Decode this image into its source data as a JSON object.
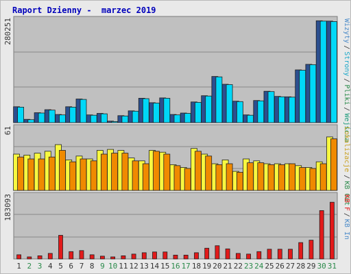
{
  "page": {
    "title": "Raport Dzienny -  marzec 2019"
  },
  "colors": {
    "panel_bg": "#c0c0c0",
    "grid": "#888888",
    "visits": "#2b4f8f",
    "pages": "#00d8f8",
    "hits": "#f8f840",
    "files": "#f08a00",
    "kb_f": "#e21a1a",
    "weekday": "#333333",
    "weekend": "#2a8a4a",
    "leg_pages": "#1aa7c8",
    "leg_visits": "#4a8ac8",
    "leg_hits": "#c8a020",
    "leg_files": "#2a8a4a",
    "leg_entries": "#1a9a7a",
    "leg_kb_f": "#e21a1a",
    "leg_kb_in": "#4a8ac8",
    "leg_kb_out": "#2a8a4a"
  },
  "chart_data": {
    "type": "bar",
    "title": "Raport Dzienny -  marzec 2019",
    "categories": [
      "1",
      "2",
      "3",
      "4",
      "5",
      "6",
      "7",
      "8",
      "9",
      "10",
      "11",
      "12",
      "13",
      "14",
      "15",
      "16",
      "17",
      "18",
      "19",
      "20",
      "21",
      "22",
      "23",
      "24",
      "25",
      "26",
      "27",
      "28",
      "29",
      "30",
      "31"
    ],
    "weekend_days": [
      "2",
      "3",
      "9",
      "10",
      "16",
      "17",
      "23",
      "24",
      "30",
      "31"
    ],
    "panels": [
      {
        "name": "visits-pages",
        "ymax_label": "280251",
        "ylim": [
          0,
          280251
        ],
        "legend": [
          {
            "text": "Wizyty",
            "color_key": "leg_visits"
          },
          {
            "text": "Strony",
            "color_key": "leg_pages"
          },
          {
            "text": "Pliki",
            "color_key": "leg_files"
          },
          {
            "text": "Wejścia",
            "color_key": "leg_entries"
          }
        ],
        "series": [
          {
            "color_key": "visits",
            "values": [
              43000,
              9000,
              27000,
              35000,
              22000,
              43000,
              64000,
              21000,
              25000,
              4000,
              19000,
              32000,
              66000,
              54000,
              67000,
              22000,
              26000,
              56000,
              73000,
              125000,
              104000,
              58000,
              21000,
              60000,
              85000,
              71000,
              70000,
              143000,
              158000,
              276000,
              275000
            ]
          },
          {
            "color_key": "pages",
            "values": [
              42000,
              8000,
              26000,
              34000,
              21000,
              42000,
              63000,
              20000,
              24000,
              3000,
              18000,
              31000,
              65000,
              53000,
              66000,
              21000,
              25000,
              55000,
              72000,
              124000,
              103000,
              57000,
              20000,
              59000,
              84000,
              70000,
              69000,
              142000,
              157000,
              275000,
              274000
            ]
          }
        ]
      },
      {
        "name": "hits-files",
        "ymax_label": "61",
        "ylim": [
          0,
          66
        ],
        "legend": [
          {
            "text": "Lokalizacje",
            "color_key": "leg_hits"
          },
          {
            "text": "KB Out",
            "color_key": "leg_kb_out"
          }
        ],
        "series": [
          {
            "color_key": "hits",
            "values": [
              38,
              37,
              39,
              41,
              48,
              32,
              36,
              33,
              42,
              43,
              42,
              34,
              31,
              42,
              40,
              27,
              24,
              44,
              38,
              28,
              32,
              20,
              33,
              31,
              28,
              28,
              28,
              26,
              24,
              30,
              56
            ]
          },
          {
            "color_key": "files",
            "values": [
              35,
              33,
              33,
              35,
              42,
              30,
              33,
              31,
              38,
              39,
              39,
              31,
              28,
              41,
              38,
              26,
              23,
              41,
              36,
              27,
              28,
              19,
              29,
              29,
              27,
              27,
              28,
              24,
              23,
              28,
              54
            ]
          }
        ]
      },
      {
        "name": "kb",
        "ymax_label": "183093",
        "ylim": [
          0,
          183093
        ],
        "legend": [
          {
            "text": "KB F",
            "color_key": "leg_kb_f"
          },
          {
            "text": "KB In",
            "color_key": "leg_kb_in"
          }
        ],
        "series": [
          {
            "color_key": "kb_f",
            "values": [
              12000,
              6000,
              9000,
              16000,
              68000,
              21000,
              24000,
              12000,
              8000,
              6000,
              9000,
              14000,
              18000,
              20000,
              20000,
              11000,
              11000,
              18000,
              31000,
              38000,
              29000,
              16000,
              14000,
              21000,
              28000,
              28000,
              28000,
              47000,
              54000,
              139000,
              163000
            ]
          }
        ]
      }
    ]
  }
}
